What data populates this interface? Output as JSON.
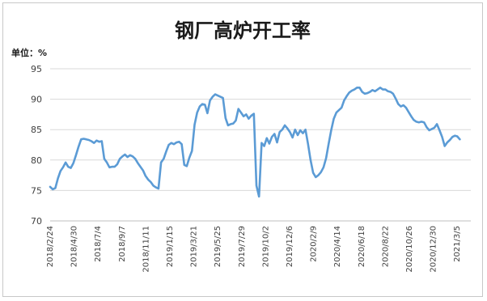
{
  "chart_data": {
    "type": "line",
    "title": "钢厂高炉开工率",
    "unit_label": "单位：%",
    "xlabel": "",
    "ylabel": "",
    "ylim": [
      70,
      95
    ],
    "yticks": [
      70,
      75,
      80,
      85,
      90,
      95
    ],
    "grid": true,
    "legend": "none",
    "line_color": "#5b9bd5",
    "x_tick_labels": [
      "2018/2/24",
      "2018/4/30",
      "2018/7/4",
      "2018/9/7",
      "2018/11/11",
      "2019/1/15",
      "2019/3/21",
      "2019/5/25",
      "2019/7/29",
      "2019/10/2",
      "2019/12/6",
      "2020/2/9",
      "2020/4/14",
      "2020/6/18",
      "2020/8/22",
      "2020/10/26",
      "2020/12/30",
      "2021/3/5"
    ],
    "x": [
      "2018/2/24",
      "2018/3/3",
      "2018/3/10",
      "2018/3/17",
      "2018/3/24",
      "2018/3/31",
      "2018/4/7",
      "2018/4/14",
      "2018/4/21",
      "2018/4/28",
      "2018/5/5",
      "2018/5/12",
      "2018/5/19",
      "2018/5/26",
      "2018/6/2",
      "2018/6/9",
      "2018/6/16",
      "2018/6/23",
      "2018/6/30",
      "2018/7/7",
      "2018/7/14",
      "2018/7/21",
      "2018/7/28",
      "2018/8/4",
      "2018/8/11",
      "2018/8/18",
      "2018/8/25",
      "2018/9/1",
      "2018/9/8",
      "2018/9/15",
      "2018/9/22",
      "2018/9/29",
      "2018/10/6",
      "2018/10/13",
      "2018/10/20",
      "2018/10/27",
      "2018/11/3",
      "2018/11/10",
      "2018/11/17",
      "2018/11/24",
      "2018/12/1",
      "2018/12/8",
      "2018/12/15",
      "2018/12/22",
      "2018/12/29",
      "2019/1/5",
      "2019/1/12",
      "2019/1/19",
      "2019/1/26",
      "2019/2/2",
      "2019/2/9",
      "2019/2/16",
      "2019/2/23",
      "2019/3/2",
      "2019/3/9",
      "2019/3/16",
      "2019/3/23",
      "2019/3/30",
      "2019/4/6",
      "2019/4/13",
      "2019/4/20",
      "2019/4/27",
      "2019/5/4",
      "2019/5/11",
      "2019/5/18",
      "2019/5/25",
      "2019/6/1",
      "2019/6/8",
      "2019/6/15",
      "2019/6/22",
      "2019/6/29",
      "2019/7/6",
      "2019/7/13",
      "2019/7/20",
      "2019/7/27",
      "2019/8/3",
      "2019/8/10",
      "2019/8/17",
      "2019/8/24",
      "2019/8/31",
      "2019/9/7",
      "2019/9/14",
      "2019/9/21",
      "2019/9/28",
      "2019/10/5",
      "2019/10/12",
      "2019/10/19",
      "2019/10/26",
      "2019/11/2",
      "2019/11/9",
      "2019/11/16",
      "2019/11/23",
      "2019/11/30",
      "2019/12/7",
      "2019/12/14",
      "2019/12/21",
      "2019/12/28",
      "2020/1/4",
      "2020/1/11",
      "2020/1/18",
      "2020/1/25",
      "2020/2/1",
      "2020/2/8",
      "2020/2/15",
      "2020/2/22",
      "2020/2/29",
      "2020/3/7",
      "2020/3/14",
      "2020/3/21",
      "2020/3/28",
      "2020/4/4",
      "2020/4/11",
      "2020/4/18",
      "2020/4/25",
      "2020/5/2",
      "2020/5/9",
      "2020/5/16",
      "2020/5/23",
      "2020/5/30",
      "2020/6/6",
      "2020/6/13",
      "2020/6/20",
      "2020/6/27",
      "2020/7/4",
      "2020/7/11",
      "2020/7/18",
      "2020/7/25",
      "2020/8/1",
      "2020/8/8",
      "2020/8/15",
      "2020/8/22",
      "2020/8/29",
      "2020/9/5",
      "2020/9/12",
      "2020/9/19",
      "2020/9/26",
      "2020/10/3",
      "2020/10/10",
      "2020/10/17",
      "2020/10/24",
      "2020/10/31",
      "2020/11/7",
      "2020/11/14",
      "2020/11/21",
      "2020/11/28",
      "2020/12/5",
      "2020/12/12",
      "2020/12/19",
      "2020/12/26",
      "2021/1/2",
      "2021/1/9",
      "2021/1/16",
      "2021/1/23",
      "2021/1/30",
      "2021/2/6",
      "2021/2/13",
      "2021/2/20",
      "2021/2/27",
      "2021/3/5",
      "2021/3/12"
    ],
    "series": [
      {
        "name": "",
        "values": [
          75.6,
          75.2,
          75.4,
          77.0,
          78.2,
          78.8,
          79.6,
          78.9,
          78.7,
          79.5,
          80.8,
          82.2,
          83.4,
          83.5,
          83.4,
          83.3,
          83.1,
          82.8,
          83.2,
          83.0,
          83.1,
          80.2,
          79.6,
          78.8,
          78.9,
          78.9,
          79.3,
          80.2,
          80.6,
          80.9,
          80.5,
          80.8,
          80.6,
          80.2,
          79.5,
          78.9,
          78.3,
          77.4,
          76.8,
          76.4,
          75.8,
          75.5,
          75.3,
          79.6,
          80.2,
          81.4,
          82.5,
          82.8,
          82.6,
          82.9,
          83.0,
          82.6,
          79.2,
          79.0,
          80.4,
          81.5,
          85.8,
          87.8,
          88.8,
          89.2,
          89.1,
          87.7,
          89.8,
          90.4,
          90.8,
          90.6,
          90.4,
          90.2,
          86.9,
          85.7,
          85.9,
          86.0,
          86.5,
          88.4,
          87.8,
          87.2,
          87.5,
          86.8,
          87.3,
          87.6,
          75.8,
          74.0,
          82.8,
          82.3,
          83.6,
          82.7,
          83.8,
          84.3,
          82.9,
          84.6,
          85.0,
          85.7,
          85.2,
          84.6,
          83.7,
          85.0,
          84.1,
          84.9,
          84.4,
          85.0,
          82.6,
          80.0,
          77.9,
          77.2,
          77.5,
          78.0,
          78.8,
          80.3,
          82.7,
          84.9,
          86.8,
          87.8,
          88.2,
          88.6,
          89.8,
          90.5,
          91.1,
          91.4,
          91.6,
          91.9,
          91.9,
          91.2,
          90.9,
          91.0,
          91.2,
          91.5,
          91.3,
          91.6,
          91.9,
          91.6,
          91.6,
          91.3,
          91.2,
          90.9,
          90.1,
          89.2,
          88.8,
          89.0,
          88.6,
          87.9,
          87.2,
          86.6,
          86.3,
          86.2,
          86.3,
          86.2,
          85.4,
          84.9,
          85.1,
          85.3,
          85.9,
          84.9,
          83.8,
          82.3,
          82.9,
          83.3,
          83.8,
          84.0,
          83.9,
          83.4
        ]
      }
    ]
  }
}
